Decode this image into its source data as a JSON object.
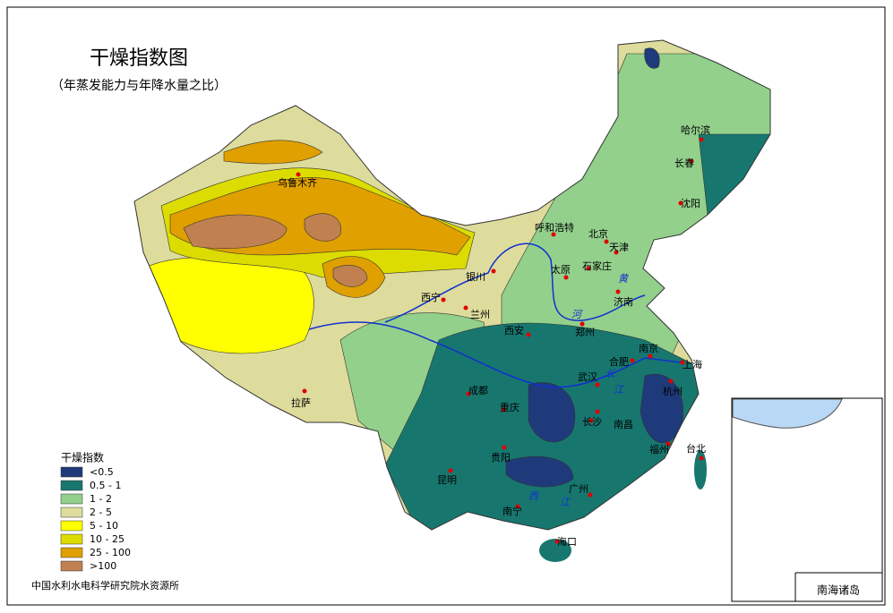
{
  "title": "干燥指数图",
  "subtitle": "（年蒸发能力与年降水量之比）",
  "legend": {
    "title": "干燥指数",
    "items": [
      {
        "label": "<0.5",
        "color": "#1f3a7a"
      },
      {
        "label": "0.5 - 1",
        "color": "#17776f"
      },
      {
        "label": "1 - 2",
        "color": "#92d08c"
      },
      {
        "label": "2 - 5",
        "color": "#dedc9c"
      },
      {
        "label": "5 - 10",
        "color": "#ffff00"
      },
      {
        "label": "10 - 25",
        "color": "#dcdc00"
      },
      {
        "label": "25 - 100",
        "color": "#e0a000"
      },
      {
        "label": ">100",
        "color": "#c08050"
      }
    ]
  },
  "cities": [
    "乌鲁木齐",
    "呼和浩特",
    "北京",
    "天津",
    "哈尔滨",
    "长春",
    "沈阳",
    "太原",
    "石家庄",
    "银川",
    "西宁",
    "兰州",
    "济南",
    "郑州",
    "西安",
    "合肥",
    "南京",
    "上海",
    "武汉",
    "杭州",
    "成都",
    "重庆",
    "长沙",
    "南昌",
    "拉萨",
    "贵阳",
    "福州",
    "台北",
    "昆明",
    "广州",
    "南宁",
    "海口"
  ],
  "river_labels": [
    "黄",
    "河",
    "长",
    "江",
    "西",
    "江"
  ],
  "source": "中国水利水电科学研究院水资源所",
  "inset_label": "南海诸岛"
}
